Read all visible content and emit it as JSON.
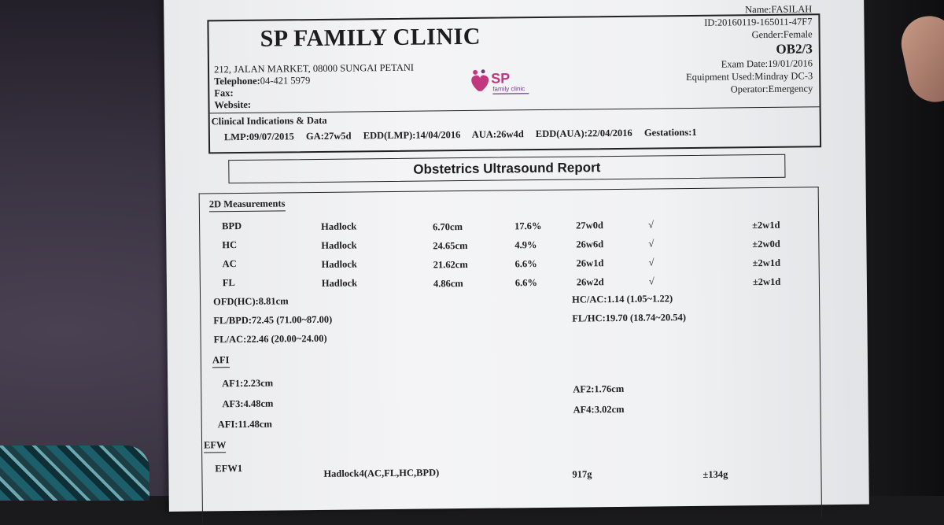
{
  "clinic": {
    "name": "SP FAMILY CLINIC",
    "address": "212, JALAN MARKET, 08000 SUNGAI PETANI",
    "telephone_label": "Telephone:",
    "telephone": "04-421 5979",
    "fax_label": "Fax:",
    "website_label": "Website:",
    "logo_text": "SP",
    "logo_subtext": "family clinic"
  },
  "patient": {
    "name": "Name:FASILAH",
    "id": "ID:20160119-165011-47F7",
    "gender": "Gender:Female",
    "code": "OB2/3",
    "exam_date": "Exam Date:19/01/2016",
    "equipment": "Equipment Used:Mindray DC-3",
    "operator": "Operator:Emergency"
  },
  "clinical": {
    "title": "Clinical Indications & Data",
    "lmp": "LMP:09/07/2015",
    "ga": "GA:27w5d",
    "edd_lmp": "EDD(LMP):14/04/2016",
    "aua": "AUA:26w4d",
    "edd_aua": "EDD(AUA):22/04/2016",
    "gestations": "Gestations:1"
  },
  "report_title": "Obstetrics Ultrasound Report",
  "measurements": {
    "title": "2D Measurements",
    "rows": [
      {
        "name": "BPD",
        "method": "Hadlock",
        "value": "6.70cm",
        "pct": "17.6%",
        "ga": "27w0d",
        "check": "√",
        "sd": "±2w1d"
      },
      {
        "name": "HC",
        "method": "Hadlock",
        "value": "24.65cm",
        "pct": "4.9%",
        "ga": "26w6d",
        "check": "√",
        "sd": "±2w0d"
      },
      {
        "name": "AC",
        "method": "Hadlock",
        "value": "21.62cm",
        "pct": "6.6%",
        "ga": "26w1d",
        "check": "√",
        "sd": "±2w1d"
      },
      {
        "name": "FL",
        "method": "Hadlock",
        "value": "4.86cm",
        "pct": "6.6%",
        "ga": "26w2d",
        "check": "√",
        "sd": "±2w1d"
      }
    ],
    "ofd": "OFD(HC):8.81cm",
    "hc_ac": "HC/AC:1.14 (1.05~1.22)",
    "fl_bpd": "FL/BPD:72.45 (71.00~87.00)",
    "fl_hc": "FL/HC:19.70 (18.74~20.54)",
    "fl_ac": "FL/AC:22.46 (20.00~24.00)"
  },
  "afi": {
    "title": "AFI",
    "af1": "AF1:2.23cm",
    "af2": "AF2:1.76cm",
    "af3": "AF3:4.48cm",
    "af4": "AF4:3.02cm",
    "afi": "AFI:11.48cm"
  },
  "efw": {
    "title": "EFW",
    "label": "EFW1",
    "method": "Hadlock4(AC,FL,HC,BPD)",
    "value": "917g",
    "sd": "±134g"
  }
}
